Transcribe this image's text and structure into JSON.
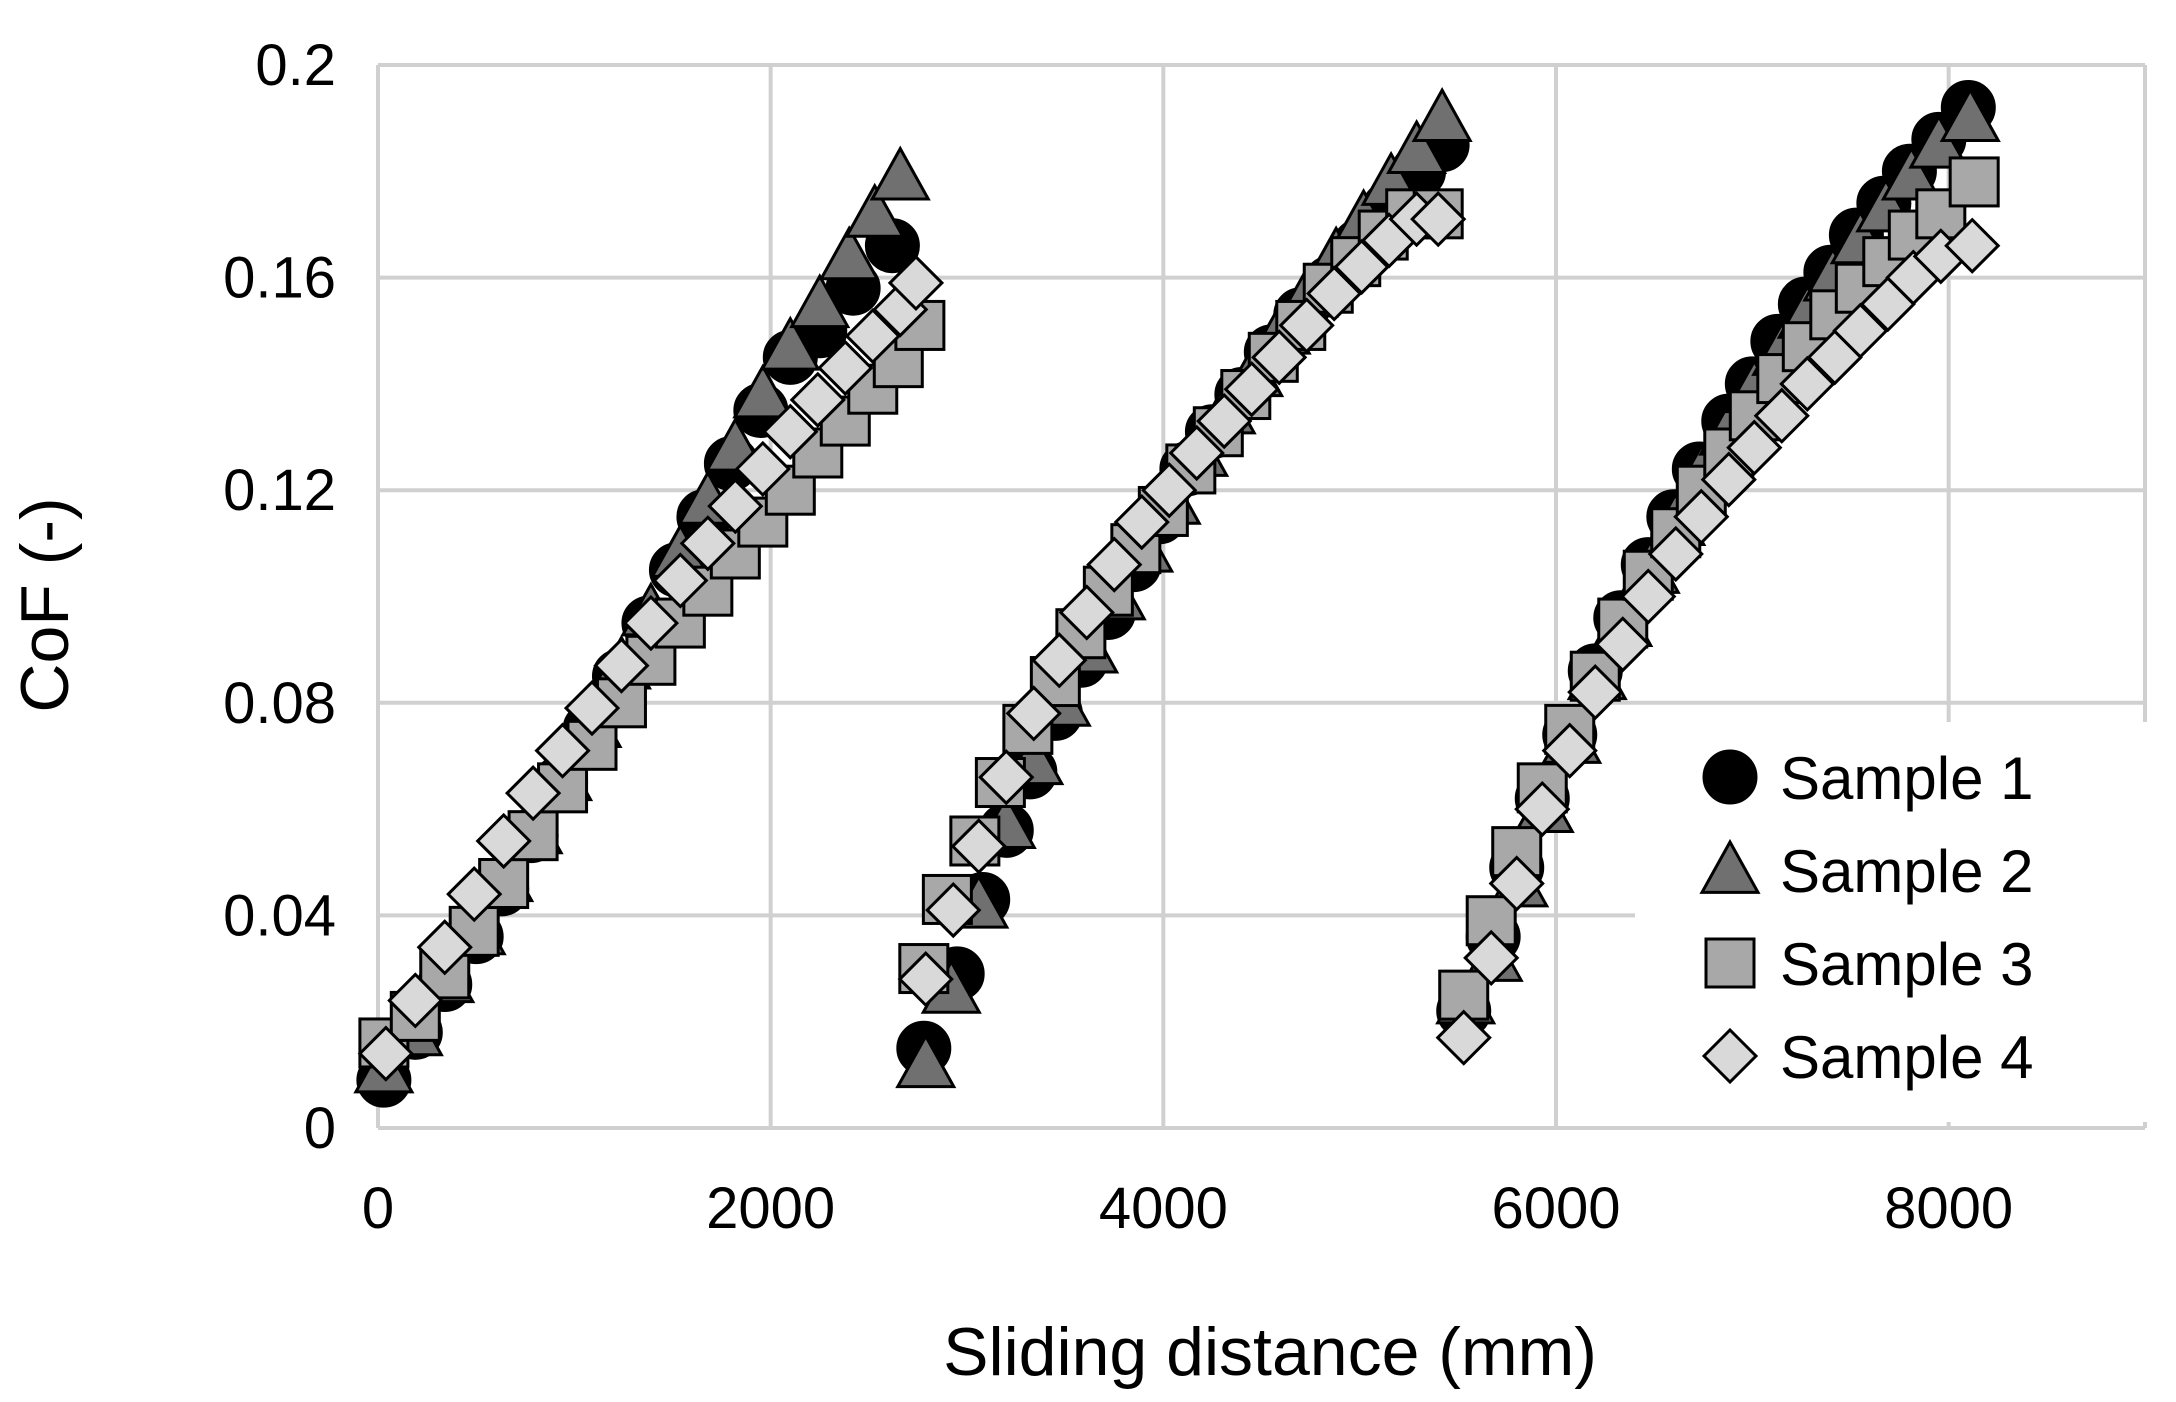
{
  "chart_data": {
    "type": "scatter",
    "xlabel": "Sliding distance (mm)",
    "ylabel": "CoF (-)",
    "xlim": [
      0,
      9000
    ],
    "ylim": [
      0,
      0.2
    ],
    "x_ticks": [
      "0",
      "2000",
      "4000",
      "6000",
      "8000"
    ],
    "y_ticks": [
      "0",
      "0.04",
      "0.08",
      "0.12",
      "0.16",
      "0.2"
    ],
    "grid": true,
    "legend_position": "bottom-right",
    "series": [
      {
        "name": "Sample 1",
        "marker": "circle",
        "color": "#000000",
        "points": [
          [
            30,
            0.009
          ],
          [
            190,
            0.018
          ],
          [
            340,
            0.027
          ],
          [
            500,
            0.036
          ],
          [
            630,
            0.045
          ],
          [
            780,
            0.055
          ],
          [
            930,
            0.065
          ],
          [
            1080,
            0.075
          ],
          [
            1230,
            0.085
          ],
          [
            1380,
            0.095
          ],
          [
            1520,
            0.105
          ],
          [
            1660,
            0.115
          ],
          [
            1800,
            0.125
          ],
          [
            1950,
            0.135
          ],
          [
            2100,
            0.145
          ],
          [
            2250,
            0.15
          ],
          [
            2420,
            0.158
          ],
          [
            2620,
            0.166
          ],
          [
            2780,
            0.015
          ],
          [
            2950,
            0.029
          ],
          [
            3080,
            0.043
          ],
          [
            3200,
            0.056
          ],
          [
            3320,
            0.067
          ],
          [
            3450,
            0.078
          ],
          [
            3580,
            0.088
          ],
          [
            3720,
            0.097
          ],
          [
            3850,
            0.106
          ],
          [
            3980,
            0.115
          ],
          [
            4120,
            0.124
          ],
          [
            4250,
            0.131
          ],
          [
            4400,
            0.138
          ],
          [
            4550,
            0.146
          ],
          [
            4700,
            0.153
          ],
          [
            4850,
            0.159
          ],
          [
            5000,
            0.166
          ],
          [
            5150,
            0.173
          ],
          [
            5300,
            0.18
          ],
          [
            5420,
            0.185
          ],
          [
            5530,
            0.022
          ],
          [
            5680,
            0.036
          ],
          [
            5800,
            0.049
          ],
          [
            5930,
            0.062
          ],
          [
            6070,
            0.074
          ],
          [
            6200,
            0.086
          ],
          [
            6330,
            0.096
          ],
          [
            6470,
            0.106
          ],
          [
            6600,
            0.115
          ],
          [
            6730,
            0.124
          ],
          [
            6880,
            0.133
          ],
          [
            7000,
            0.14
          ],
          [
            7130,
            0.148
          ],
          [
            7270,
            0.155
          ],
          [
            7400,
            0.161
          ],
          [
            7530,
            0.168
          ],
          [
            7670,
            0.174
          ],
          [
            7800,
            0.18
          ],
          [
            7950,
            0.186
          ],
          [
            8100,
            0.192
          ]
        ]
      },
      {
        "name": "Sample 2",
        "marker": "triangle",
        "color": "#707070",
        "points": [
          [
            30,
            0.011
          ],
          [
            180,
            0.018
          ],
          [
            340,
            0.028
          ],
          [
            500,
            0.037
          ],
          [
            640,
            0.047
          ],
          [
            790,
            0.056
          ],
          [
            940,
            0.066
          ],
          [
            1090,
            0.076
          ],
          [
            1240,
            0.087
          ],
          [
            1390,
            0.097
          ],
          [
            1540,
            0.108
          ],
          [
            1680,
            0.118
          ],
          [
            1820,
            0.128
          ],
          [
            1960,
            0.138
          ],
          [
            2100,
            0.147
          ],
          [
            2250,
            0.155
          ],
          [
            2400,
            0.164
          ],
          [
            2530,
            0.172
          ],
          [
            2660,
            0.179
          ],
          [
            2790,
            0.012
          ],
          [
            2920,
            0.026
          ],
          [
            3060,
            0.042
          ],
          [
            3200,
            0.057
          ],
          [
            3340,
            0.069
          ],
          [
            3480,
            0.08
          ],
          [
            3620,
            0.09
          ],
          [
            3760,
            0.1
          ],
          [
            3900,
            0.109
          ],
          [
            4040,
            0.118
          ],
          [
            4180,
            0.127
          ],
          [
            4320,
            0.135
          ],
          [
            4460,
            0.142
          ],
          [
            4600,
            0.15
          ],
          [
            4740,
            0.157
          ],
          [
            4880,
            0.164
          ],
          [
            5020,
            0.171
          ],
          [
            5160,
            0.178
          ],
          [
            5290,
            0.184
          ],
          [
            5420,
            0.19
          ],
          [
            5540,
            0.024
          ],
          [
            5680,
            0.032
          ],
          [
            5810,
            0.046
          ],
          [
            5940,
            0.06
          ],
          [
            6080,
            0.073
          ],
          [
            6210,
            0.085
          ],
          [
            6340,
            0.095
          ],
          [
            6480,
            0.105
          ],
          [
            6610,
            0.114
          ],
          [
            6740,
            0.123
          ],
          [
            6880,
            0.131
          ],
          [
            7010,
            0.139
          ],
          [
            7150,
            0.146
          ],
          [
            7280,
            0.153
          ],
          [
            7410,
            0.16
          ],
          [
            7550,
            0.167
          ],
          [
            7680,
            0.173
          ],
          [
            7810,
            0.179
          ],
          [
            7950,
            0.185
          ],
          [
            8110,
            0.19
          ]
        ]
      },
      {
        "name": "Sample 3",
        "marker": "square",
        "color": "#a8a8a8",
        "points": [
          [
            30,
            0.016
          ],
          [
            190,
            0.021
          ],
          [
            340,
            0.029
          ],
          [
            490,
            0.037
          ],
          [
            640,
            0.046
          ],
          [
            790,
            0.055
          ],
          [
            940,
            0.064
          ],
          [
            1090,
            0.072
          ],
          [
            1240,
            0.08
          ],
          [
            1390,
            0.088
          ],
          [
            1540,
            0.095
          ],
          [
            1680,
            0.101
          ],
          [
            1820,
            0.108
          ],
          [
            1960,
            0.114
          ],
          [
            2100,
            0.12
          ],
          [
            2240,
            0.127
          ],
          [
            2380,
            0.133
          ],
          [
            2520,
            0.139
          ],
          [
            2650,
            0.144
          ],
          [
            2760,
            0.151
          ],
          [
            2780,
            0.03
          ],
          [
            2900,
            0.043
          ],
          [
            3040,
            0.054
          ],
          [
            3170,
            0.065
          ],
          [
            3310,
            0.075
          ],
          [
            3450,
            0.084
          ],
          [
            3580,
            0.093
          ],
          [
            3720,
            0.101
          ],
          [
            3860,
            0.109
          ],
          [
            4000,
            0.116
          ],
          [
            4140,
            0.124
          ],
          [
            4280,
            0.131
          ],
          [
            4420,
            0.138
          ],
          [
            4560,
            0.145
          ],
          [
            4700,
            0.151
          ],
          [
            4840,
            0.158
          ],
          [
            4980,
            0.163
          ],
          [
            5120,
            0.168
          ],
          [
            5260,
            0.172
          ],
          [
            5400,
            0.172
          ],
          [
            5530,
            0.025
          ],
          [
            5670,
            0.039
          ],
          [
            5800,
            0.052
          ],
          [
            5930,
            0.064
          ],
          [
            6070,
            0.075
          ],
          [
            6200,
            0.085
          ],
          [
            6340,
            0.095
          ],
          [
            6470,
            0.104
          ],
          [
            6610,
            0.112
          ],
          [
            6740,
            0.12
          ],
          [
            6880,
            0.127
          ],
          [
            7010,
            0.134
          ],
          [
            7150,
            0.141
          ],
          [
            7280,
            0.147
          ],
          [
            7420,
            0.153
          ],
          [
            7550,
            0.158
          ],
          [
            7690,
            0.163
          ],
          [
            7820,
            0.168
          ],
          [
            7960,
            0.172
          ],
          [
            8130,
            0.178
          ]
        ]
      },
      {
        "name": "Sample 4",
        "marker": "diamond",
        "color": "#d9d9d9",
        "points": [
          [
            40,
            0.014
          ],
          [
            190,
            0.024
          ],
          [
            340,
            0.034
          ],
          [
            490,
            0.044
          ],
          [
            640,
            0.054
          ],
          [
            790,
            0.063
          ],
          [
            940,
            0.071
          ],
          [
            1090,
            0.079
          ],
          [
            1240,
            0.087
          ],
          [
            1390,
            0.095
          ],
          [
            1540,
            0.103
          ],
          [
            1680,
            0.11
          ],
          [
            1820,
            0.117
          ],
          [
            1960,
            0.124
          ],
          [
            2100,
            0.131
          ],
          [
            2240,
            0.137
          ],
          [
            2380,
            0.143
          ],
          [
            2520,
            0.149
          ],
          [
            2660,
            0.154
          ],
          [
            2740,
            0.159
          ],
          [
            2790,
            0.028
          ],
          [
            2930,
            0.041
          ],
          [
            3060,
            0.053
          ],
          [
            3200,
            0.066
          ],
          [
            3340,
            0.078
          ],
          [
            3470,
            0.088
          ],
          [
            3610,
            0.097
          ],
          [
            3750,
            0.106
          ],
          [
            3890,
            0.114
          ],
          [
            4030,
            0.12
          ],
          [
            4170,
            0.127
          ],
          [
            4310,
            0.133
          ],
          [
            4450,
            0.139
          ],
          [
            4590,
            0.145
          ],
          [
            4730,
            0.151
          ],
          [
            4870,
            0.157
          ],
          [
            5010,
            0.162
          ],
          [
            5150,
            0.167
          ],
          [
            5290,
            0.171
          ],
          [
            5400,
            0.171
          ],
          [
            5530,
            0.017
          ],
          [
            5670,
            0.032
          ],
          [
            5800,
            0.046
          ],
          [
            5930,
            0.06
          ],
          [
            6070,
            0.071
          ],
          [
            6200,
            0.082
          ],
          [
            6340,
            0.091
          ],
          [
            6470,
            0.1
          ],
          [
            6610,
            0.108
          ],
          [
            6740,
            0.115
          ],
          [
            6880,
            0.122
          ],
          [
            7010,
            0.128
          ],
          [
            7150,
            0.134
          ],
          [
            7280,
            0.14
          ],
          [
            7420,
            0.145
          ],
          [
            7550,
            0.15
          ],
          [
            7690,
            0.155
          ],
          [
            7820,
            0.16
          ],
          [
            7960,
            0.164
          ],
          [
            8120,
            0.166
          ]
        ]
      }
    ]
  }
}
